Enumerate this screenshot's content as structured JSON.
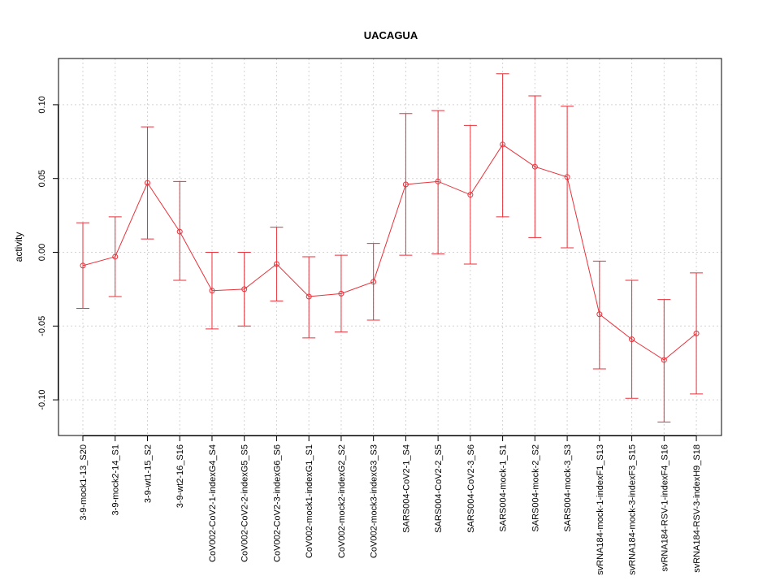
{
  "chart_data": {
    "type": "line",
    "title": "UACAGUA",
    "xlabel": "",
    "ylabel": "activity",
    "ylim": [
      -0.125,
      0.13
    ],
    "yticks": [
      -0.1,
      -0.05,
      0.0,
      0.05,
      0.1
    ],
    "ytick_labels": [
      "-0.10",
      "-0.05",
      "0.00",
      "0.05",
      "0.10"
    ],
    "grid": true,
    "color": "#e8313a",
    "categories": [
      "3-9-mock1-13_S20",
      "3-9-mock2-14_S1",
      "3-9-wt1-15_S2",
      "3-9-wt2-16_S16",
      "CoV002-CoV2-1-indexG4_S4",
      "CoV002-CoV2-2-indexG5_S5",
      "CoV002-CoV2-3-indexG6_S6",
      "CoV002-mock1-indexG1_S1",
      "CoV002-mock2-indexG2_S2",
      "CoV002-mock3-indexG3_S3",
      "SARS004-CoV2-1_S4",
      "SARS004-CoV2-2_S5",
      "SARS004-CoV2-3_S6",
      "SARS004-mock-1_S1",
      "SARS004-mock-2_S2",
      "SARS004-mock-3_S3",
      "svRNA184-mock-1-indexF1_S13",
      "svRNA184-mock-3-indexF3_S15",
      "svRNA184-RSV-1-indexF4_S16",
      "svRNA184-RSV-3-indexH9_S18"
    ],
    "values": [
      -0.009,
      -0.003,
      0.047,
      0.014,
      -0.026,
      -0.025,
      -0.008,
      -0.03,
      -0.028,
      -0.02,
      0.046,
      0.048,
      0.039,
      0.073,
      0.058,
      0.051,
      -0.042,
      -0.059,
      -0.073,
      -0.055
    ],
    "upper": [
      0.02,
      0.024,
      0.085,
      0.048,
      0.0,
      0.0,
      0.017,
      -0.003,
      -0.002,
      0.006,
      0.094,
      0.096,
      0.086,
      0.121,
      0.106,
      0.099,
      -0.006,
      -0.019,
      -0.032,
      -0.014
    ],
    "lower": [
      -0.038,
      -0.03,
      0.009,
      -0.019,
      -0.052,
      -0.05,
      -0.033,
      -0.058,
      -0.054,
      -0.046,
      -0.002,
      -0.001,
      -0.008,
      0.024,
      0.01,
      0.003,
      -0.079,
      -0.099,
      -0.115,
      -0.096
    ]
  }
}
